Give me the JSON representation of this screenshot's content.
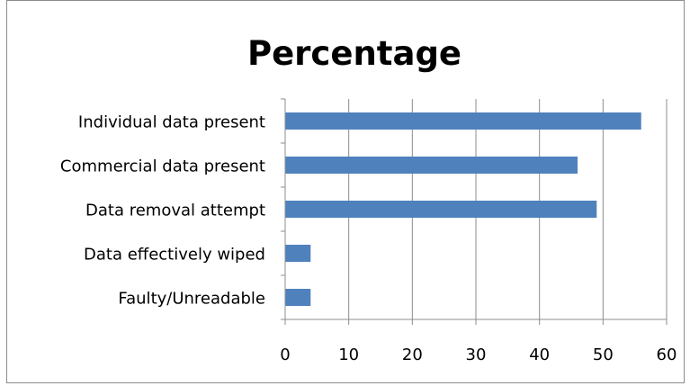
{
  "chart_data": {
    "type": "bar",
    "orientation": "horizontal",
    "title": "Percentage",
    "categories": [
      "Individual data present",
      "Commercial data present",
      "Data removal attempt",
      "Data effectively wiped",
      "Faulty/Unreadable"
    ],
    "values": [
      56,
      46,
      49,
      4,
      4
    ],
    "xlim": [
      0,
      60
    ],
    "xticks": [
      "0",
      "10",
      "20",
      "30",
      "40",
      "50",
      "60"
    ],
    "grid": "vertical",
    "legend": "none",
    "bar_color": "#4f81bd",
    "grid_color": "#8c8c8c"
  }
}
